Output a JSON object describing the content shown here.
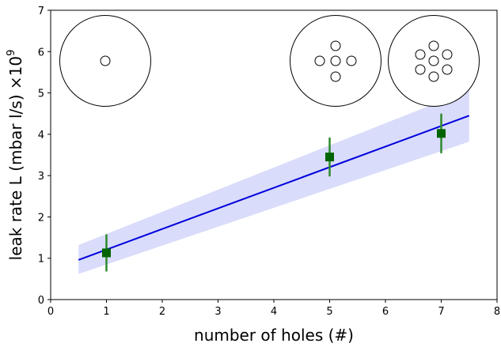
{
  "chart_data": {
    "type": "scatter",
    "title": "",
    "xlabel": "number of holes (#)",
    "ylabel": "leak rate L (mbar l/s) ×10",
    "ylabel_exponent": "9",
    "xlim": [
      0,
      8
    ],
    "ylim": [
      0,
      7
    ],
    "xticks": [
      "0",
      "1",
      "2",
      "3",
      "4",
      "5",
      "6",
      "7",
      "8"
    ],
    "yticks": [
      "0",
      "1",
      "2",
      "3",
      "4",
      "5",
      "6",
      "7"
    ],
    "grid": false,
    "points": [
      {
        "x": 1,
        "y": 1.13,
        "yerr": 0.45
      },
      {
        "x": 5,
        "y": 3.45,
        "yerr": 0.47
      },
      {
        "x": 7,
        "y": 4.02,
        "yerr": 0.48
      }
    ],
    "fit_line": {
      "x": [
        0.5,
        7.5
      ],
      "y": [
        0.96,
        4.45
      ]
    },
    "confidence_band": {
      "x": [
        0.5,
        7.5
      ],
      "lower": [
        0.62,
        3.82
      ],
      "upper": [
        1.32,
        5.07
      ]
    },
    "colors": {
      "points": "#006400",
      "errorbars": "#2d8a2d",
      "fit_line": "#0000dd",
      "band": "#ccd0f8"
    },
    "insets": [
      {
        "holes": 1
      },
      {
        "holes": 5
      },
      {
        "holes": 7
      }
    ]
  }
}
